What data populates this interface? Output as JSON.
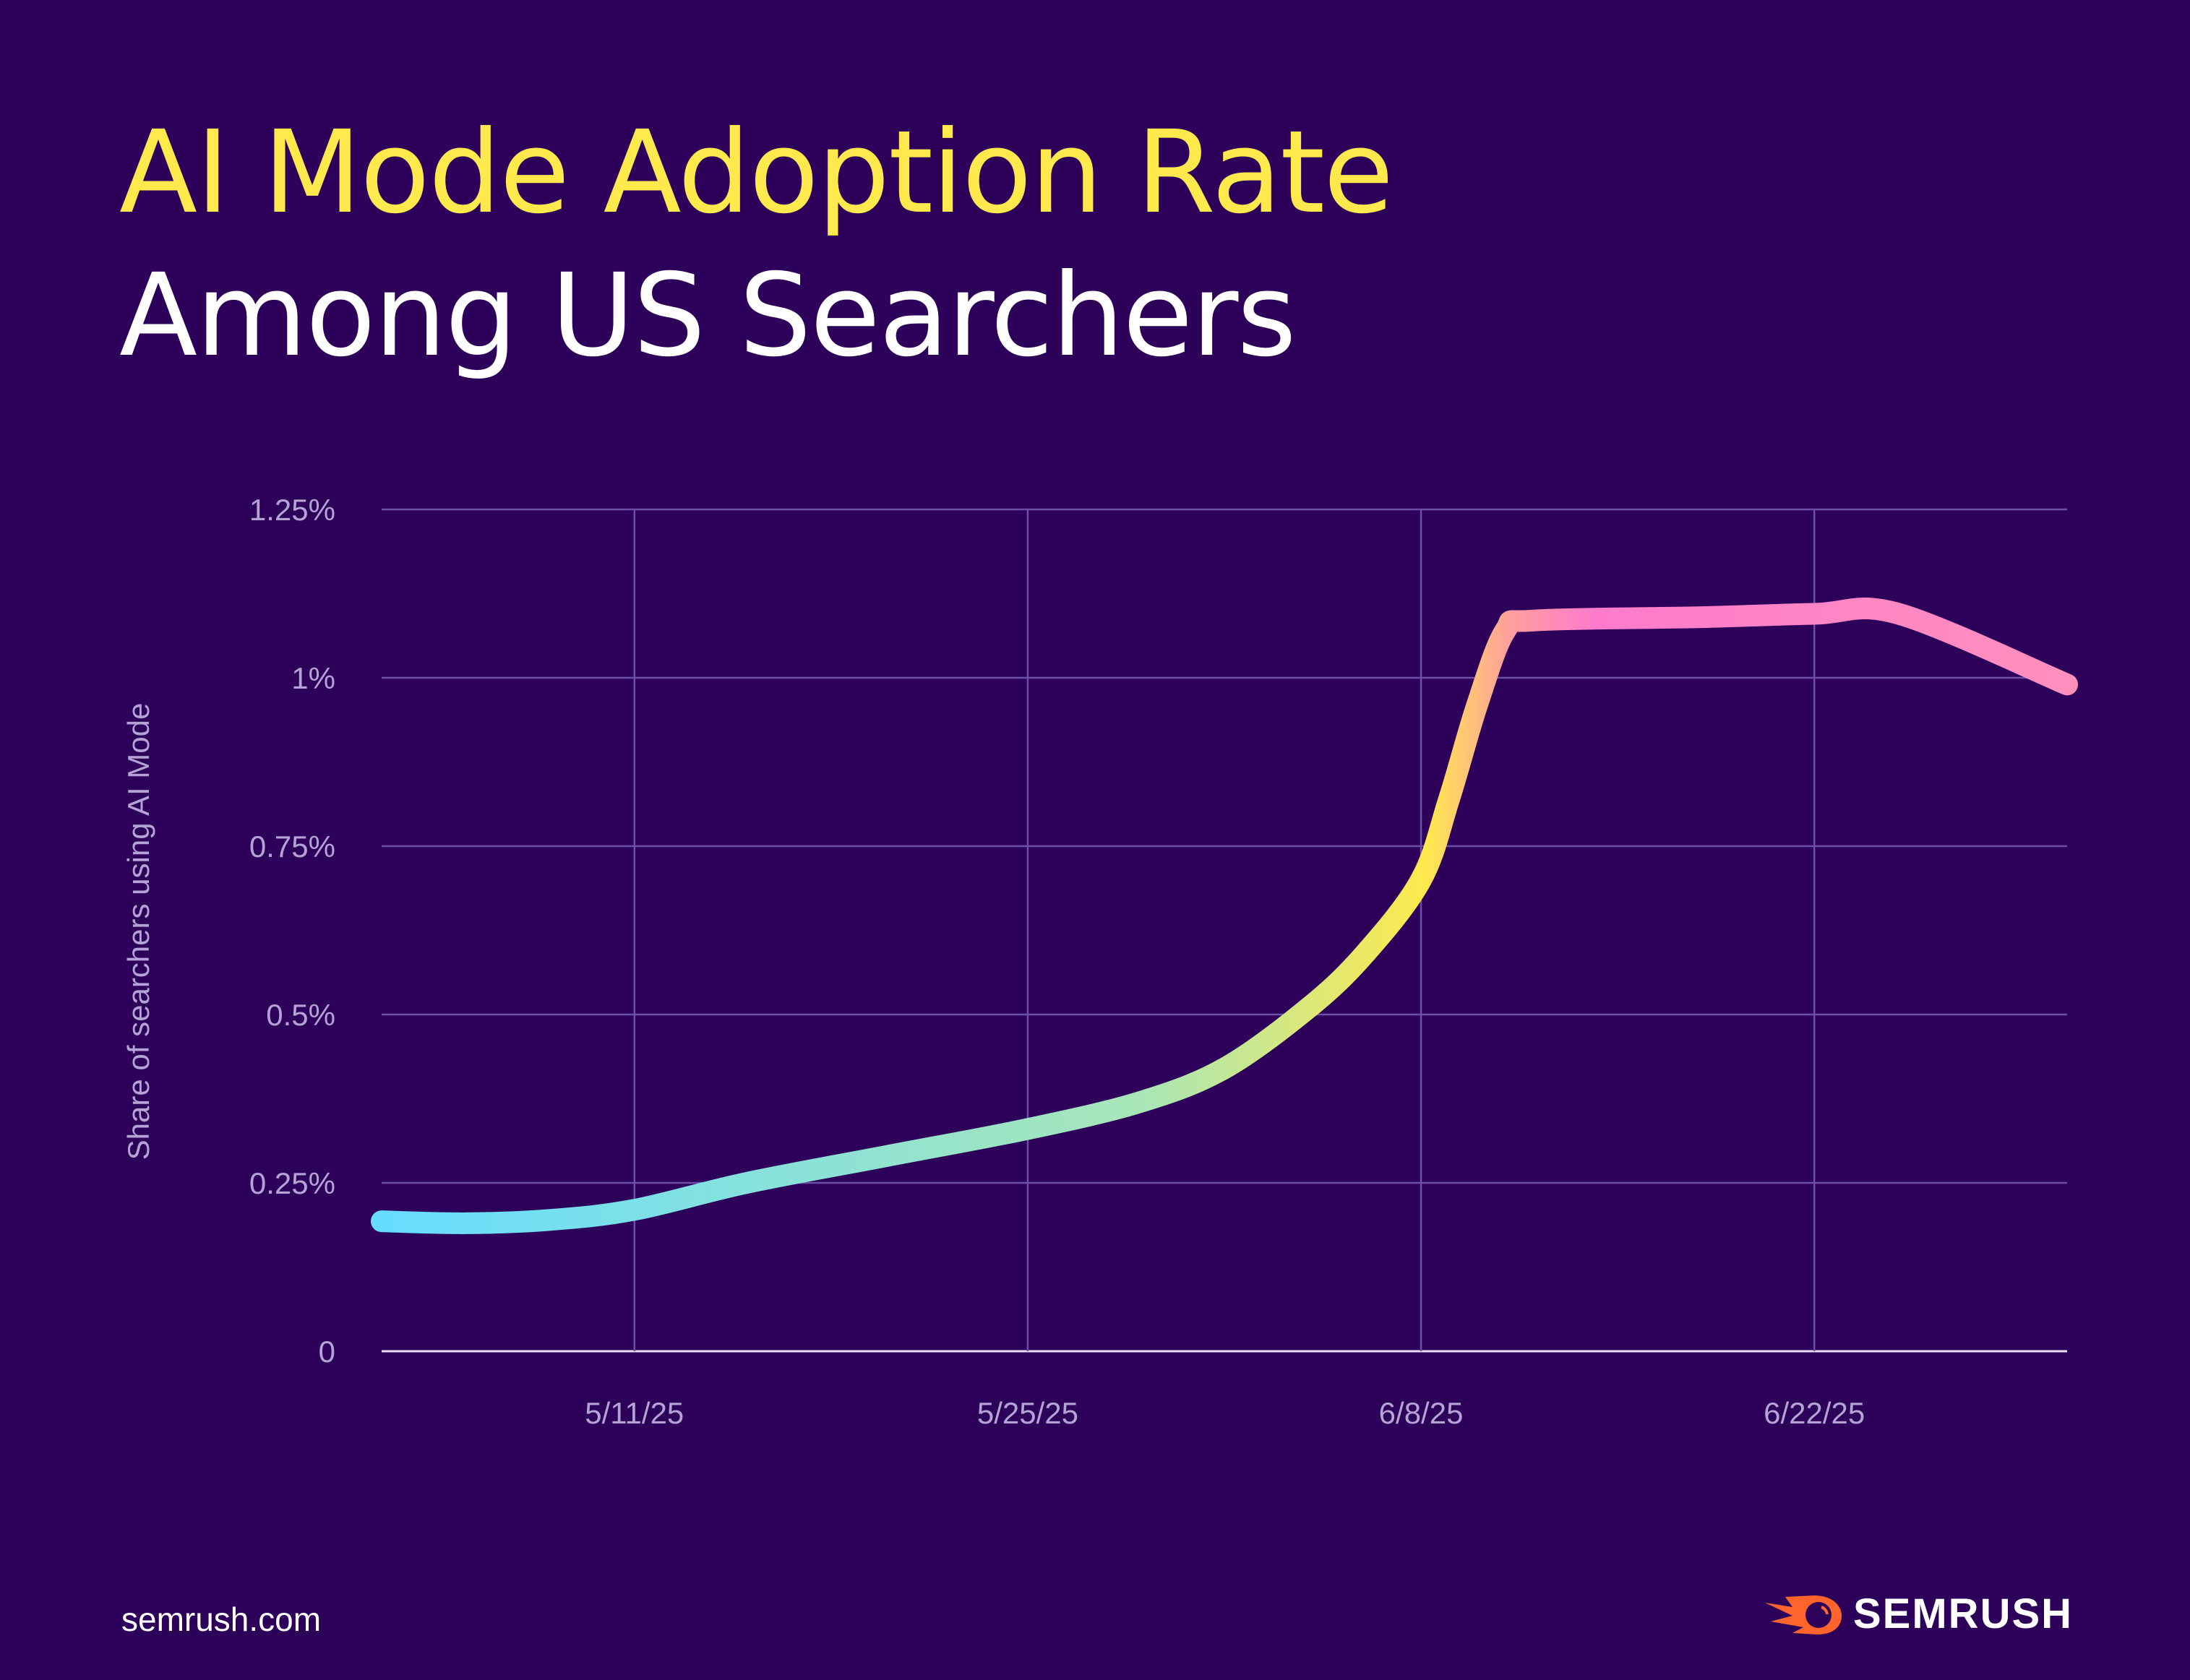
{
  "title_line1": "AI Mode Adoption Rate",
  "title_line2": "Among US Searchers",
  "footer": {
    "site": "semrush.com",
    "logo": "SEMRUSH"
  },
  "colors": {
    "background": "#2D0159",
    "title": "#FFE94D",
    "grid": "#6B4FA8",
    "gradient": [
      "#66DDFF",
      "#A8E6B8",
      "#FFE94D",
      "#FF9EA0",
      "#FF7ACD",
      "#FF90BE"
    ]
  },
  "chart_data": {
    "type": "line",
    "title": "AI Mode Adoption Rate Among US Searchers",
    "xlabel": "",
    "ylabel": "Share of searchers using AI Mode",
    "x_ticks": [
      "5/11/25",
      "5/25/25",
      "6/8/25",
      "6/22/25"
    ],
    "y_ticks": [
      "0",
      "0.25%",
      "0.5%",
      "0.75%",
      "1%",
      "1.25%"
    ],
    "y_tick_values": [
      0,
      0.25,
      0.5,
      0.75,
      1,
      1.25
    ],
    "xlim": [
      "2025-05-02",
      "2025-07-01"
    ],
    "ylim": [
      0,
      1.25
    ],
    "grid": true,
    "legend": "none",
    "x": [
      "2025-05-02",
      "2025-05-05",
      "2025-05-08",
      "2025-05-11",
      "2025-05-15",
      "2025-05-20",
      "2025-05-25",
      "2025-05-29",
      "2025-06-01",
      "2025-06-04",
      "2025-06-06",
      "2025-06-08",
      "2025-06-09",
      "2025-06-10",
      "2025-06-11",
      "2025-06-12",
      "2025-06-18",
      "2025-06-22",
      "2025-06-25",
      "2025-07-01"
    ],
    "values": [
      0.193,
      0.19,
      0.195,
      0.21,
      0.25,
      0.29,
      0.33,
      0.37,
      0.42,
      0.51,
      0.59,
      0.7,
      0.82,
      0.96,
      1.07,
      1.085,
      1.09,
      1.095,
      1.095,
      0.99
    ]
  }
}
